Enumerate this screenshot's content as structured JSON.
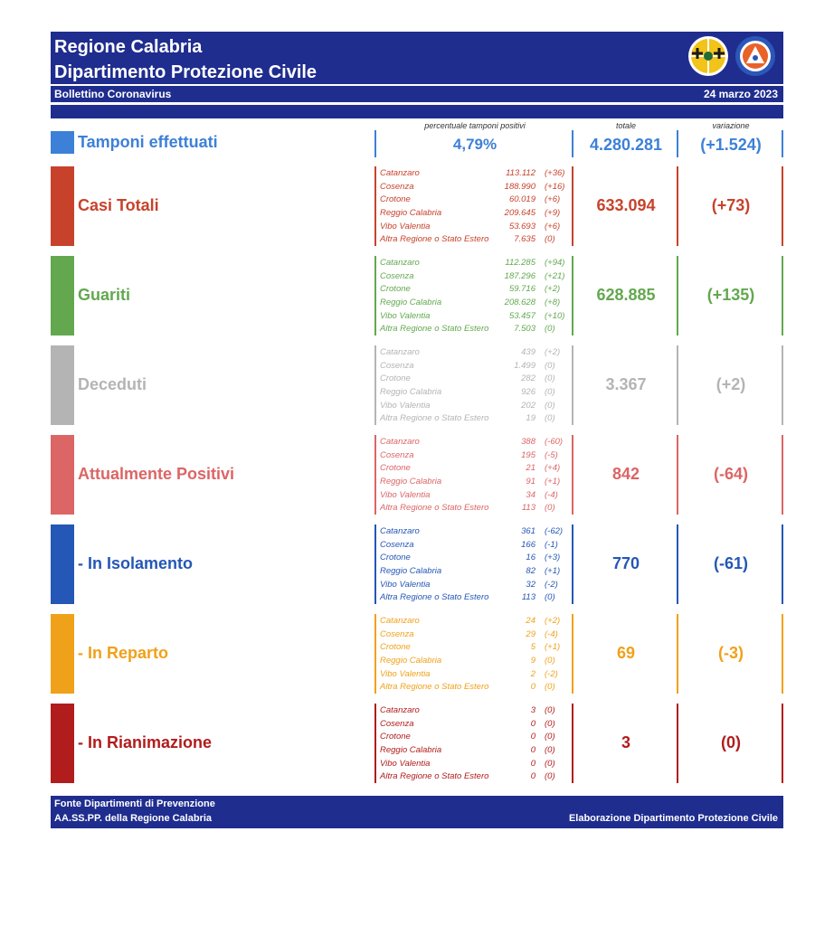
{
  "header": {
    "title_line1": "Regione Calabria",
    "title_line2": "Dipartimento Protezione Civile",
    "subtitle": "Bollettino Coronavirus",
    "date": "24 marzo 2023"
  },
  "columns": {
    "pct_label": "percentuale tamponi positivi",
    "total_label": "totale",
    "variation_label": "variazione"
  },
  "tamponi": {
    "label": "Tamponi effettuati",
    "pct": "4,79%",
    "total": "4.280.281",
    "variation": "(+1.524)"
  },
  "sections": [
    {
      "key": "casi",
      "label": "Casi Totali",
      "color": "#c8422b",
      "total": "633.094",
      "variation": "(+73)",
      "rows": [
        {
          "name": "Catanzaro",
          "value": "113.112",
          "delta": "(+36)"
        },
        {
          "name": "Cosenza",
          "value": "188.990",
          "delta": "(+16)"
        },
        {
          "name": "Crotone",
          "value": "60.019",
          "delta": "(+6)"
        },
        {
          "name": "Reggio Calabria",
          "value": "209.645",
          "delta": "(+9)"
        },
        {
          "name": "Vibo Valentia",
          "value": "53.693",
          "delta": "(+6)"
        },
        {
          "name": "Altra Regione o Stato Estero",
          "value": "7.635",
          "delta": "(0)"
        }
      ]
    },
    {
      "key": "guariti",
      "label": "Guariti",
      "color": "#63a84f",
      "total": "628.885",
      "variation": "(+135)",
      "rows": [
        {
          "name": "Catanzaro",
          "value": "112.285",
          "delta": "(+94)"
        },
        {
          "name": "Cosenza",
          "value": "187.296",
          "delta": "(+21)"
        },
        {
          "name": "Crotone",
          "value": "59.716",
          "delta": "(+2)"
        },
        {
          "name": "Reggio Calabria",
          "value": "208.628",
          "delta": "(+8)"
        },
        {
          "name": "Vibo Valentia",
          "value": "53.457",
          "delta": "(+10)"
        },
        {
          "name": "Altra Regione o Stato Estero",
          "value": "7.503",
          "delta": "(0)"
        }
      ]
    },
    {
      "key": "deceduti",
      "label": "Deceduti",
      "color": "#b4b4b4",
      "total": "3.367",
      "variation": "(+2)",
      "rows": [
        {
          "name": "Catanzaro",
          "value": "439",
          "delta": "(+2)"
        },
        {
          "name": "Cosenza",
          "value": "1.499",
          "delta": "(0)"
        },
        {
          "name": "Crotone",
          "value": "282",
          "delta": "(0)"
        },
        {
          "name": "Reggio Calabria",
          "value": "926",
          "delta": "(0)"
        },
        {
          "name": "Vibo Valentia",
          "value": "202",
          "delta": "(0)"
        },
        {
          "name": "Altra Regione o Stato Estero",
          "value": "19",
          "delta": "(0)"
        }
      ]
    },
    {
      "key": "positivi",
      "label": "Attualmente Positivi",
      "color": "#dc6565",
      "total": "842",
      "variation": "(-64)",
      "rows": [
        {
          "name": "Catanzaro",
          "value": "388",
          "delta": "(-60)"
        },
        {
          "name": "Cosenza",
          "value": "195",
          "delta": "(-5)"
        },
        {
          "name": "Crotone",
          "value": "21",
          "delta": "(+4)"
        },
        {
          "name": "Reggio Calabria",
          "value": "91",
          "delta": "(+1)"
        },
        {
          "name": "Vibo Valentia",
          "value": "34",
          "delta": "(-4)"
        },
        {
          "name": "Altra Regione o Stato Estero",
          "value": "113",
          "delta": "(0)"
        }
      ]
    },
    {
      "key": "isolamento",
      "label": "- In Isolamento",
      "color": "#2457b6",
      "total": "770",
      "variation": "(-61)",
      "rows": [
        {
          "name": "Catanzaro",
          "value": "361",
          "delta": "(-62)"
        },
        {
          "name": "Cosenza",
          "value": "166",
          "delta": "(-1)"
        },
        {
          "name": "Crotone",
          "value": "16",
          "delta": "(+3)"
        },
        {
          "name": "Reggio Calabria",
          "value": "82",
          "delta": "(+1)"
        },
        {
          "name": "Vibo Valentia",
          "value": "32",
          "delta": "(-2)"
        },
        {
          "name": "Altra Regione o Stato Estero",
          "value": "113",
          "delta": "(0)"
        }
      ]
    },
    {
      "key": "reparto",
      "label": "- In Reparto",
      "color": "#f0a11a",
      "total": "69",
      "variation": "(-3)",
      "rows": [
        {
          "name": "Catanzaro",
          "value": "24",
          "delta": "(+2)"
        },
        {
          "name": "Cosenza",
          "value": "29",
          "delta": "(-4)"
        },
        {
          "name": "Crotone",
          "value": "5",
          "delta": "(+1)"
        },
        {
          "name": "Reggio Calabria",
          "value": "9",
          "delta": "(0)"
        },
        {
          "name": "Vibo Valentia",
          "value": "2",
          "delta": "(-2)"
        },
        {
          "name": "Altra Regione o Stato Estero",
          "value": "0",
          "delta": "(0)"
        }
      ]
    },
    {
      "key": "rianimazione",
      "label": "- In Rianimazione",
      "color": "#b11c1c",
      "total": "3",
      "variation": "(0)",
      "rows": [
        {
          "name": "Catanzaro",
          "value": "3",
          "delta": "(0)"
        },
        {
          "name": "Cosenza",
          "value": "0",
          "delta": "(0)"
        },
        {
          "name": "Crotone",
          "value": "0",
          "delta": "(0)"
        },
        {
          "name": "Reggio Calabria",
          "value": "0",
          "delta": "(0)"
        },
        {
          "name": "Vibo Valentia",
          "value": "0",
          "delta": "(0)"
        },
        {
          "name": "Altra Regione o Stato Estero",
          "value": "0",
          "delta": "(0)"
        }
      ]
    }
  ],
  "footer": {
    "left_line1": "Fonte Dipartimenti di Prevenzione",
    "left_line2": "AA.SS.PP. della Regione Calabria",
    "right": "Elaborazione Dipartimento Protezione Civile"
  },
  "colors": {
    "header_bg": "#1f2d8f",
    "tamponi": "#3d80d8"
  }
}
